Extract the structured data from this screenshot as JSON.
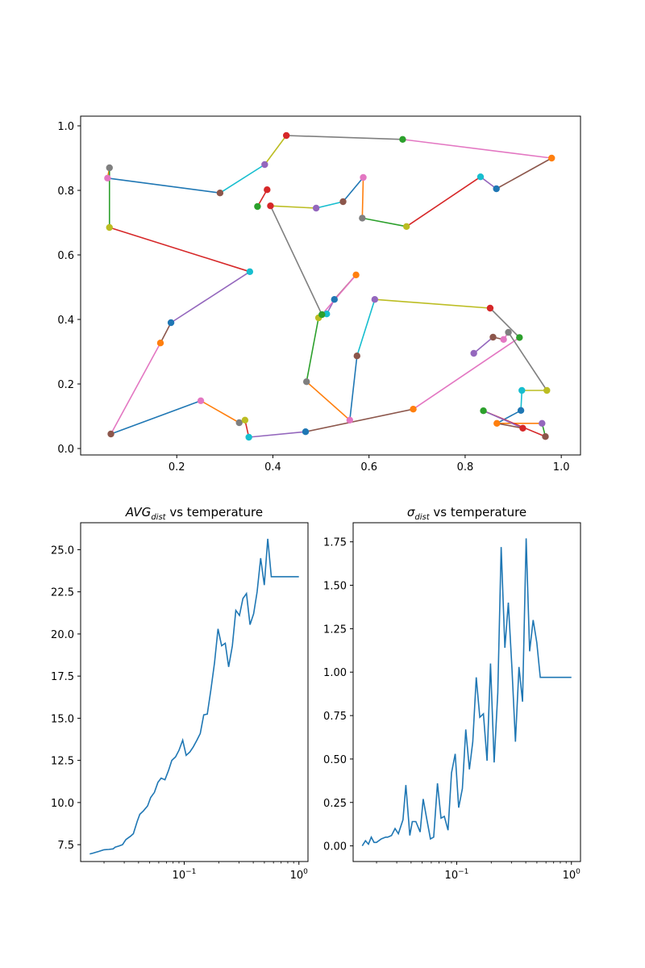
{
  "chart_data": [
    {
      "type": "scatter",
      "title": "",
      "xlabel": "",
      "ylabel": "",
      "xlim": [
        0.0,
        1.04
      ],
      "ylim": [
        -0.02,
        1.03
      ],
      "xticks": [
        "0.2",
        "0.4",
        "0.6",
        "0.8",
        "1.0"
      ],
      "yticks": [
        "0.0",
        "0.2",
        "0.4",
        "0.6",
        "0.8",
        "1.0"
      ],
      "color_cycle": [
        "#1f77b4",
        "#ff7f0e",
        "#2ca02c",
        "#d62728",
        "#9467bd",
        "#8c564b",
        "#e377c2",
        "#7f7f7f",
        "#bcbd22",
        "#17becf"
      ],
      "tour": [
        [
          0.063,
          0.045
        ],
        [
          0.25,
          0.148
        ],
        [
          0.33,
          0.08
        ],
        [
          0.342,
          0.088
        ],
        [
          0.35,
          0.035
        ],
        [
          0.468,
          0.052
        ],
        [
          0.692,
          0.122
        ],
        [
          0.913,
          0.344
        ],
        [
          0.852,
          0.435
        ],
        [
          0.612,
          0.462
        ],
        [
          0.575,
          0.287
        ],
        [
          0.56,
          0.088
        ],
        [
          0.47,
          0.207
        ],
        [
          0.495,
          0.405
        ],
        [
          0.512,
          0.417
        ],
        [
          0.528,
          0.462
        ],
        [
          0.573,
          0.538
        ],
        [
          0.502,
          0.415
        ],
        [
          0.395,
          0.752
        ],
        [
          0.49,
          0.745
        ],
        [
          0.546,
          0.765
        ],
        [
          0.588,
          0.84
        ],
        [
          0.586,
          0.714
        ],
        [
          0.678,
          0.688
        ],
        [
          0.832,
          0.842
        ],
        [
          0.865,
          0.805
        ],
        [
          0.98,
          0.9
        ],
        [
          0.67,
          0.958
        ],
        [
          0.428,
          0.97
        ],
        [
          0.383,
          0.88
        ],
        [
          0.29,
          0.792
        ],
        [
          0.056,
          0.838
        ],
        [
          0.06,
          0.87
        ],
        [
          0.06,
          0.685
        ],
        [
          0.352,
          0.548
        ],
        [
          0.188,
          0.39
        ],
        [
          0.166,
          0.327
        ],
        [
          0.063,
          0.045
        ]
      ],
      "stray_points": [
        [
          0.368,
          0.75
        ],
        [
          0.388,
          0.802
        ],
        [
          0.818,
          0.295
        ],
        [
          0.858,
          0.345
        ],
        [
          0.88,
          0.338
        ],
        [
          0.89,
          0.36
        ],
        [
          0.97,
          0.18
        ],
        [
          0.918,
          0.18
        ],
        [
          0.916,
          0.118
        ],
        [
          0.866,
          0.078
        ],
        [
          0.838,
          0.117
        ],
        [
          0.92,
          0.063
        ],
        [
          0.96,
          0.078
        ],
        [
          0.967,
          0.037
        ]
      ],
      "stray_links": [
        [
          0,
          1
        ],
        [
          2,
          3
        ],
        [
          3,
          4
        ],
        [
          4,
          5
        ],
        [
          5,
          6
        ],
        [
          6,
          7
        ],
        [
          7,
          8
        ],
        [
          8,
          9
        ],
        [
          9,
          12
        ],
        [
          12,
          13
        ],
        [
          13,
          10
        ],
        [
          10,
          11
        ],
        [
          11,
          9
        ]
      ]
    },
    {
      "type": "line",
      "title_base": "AVG",
      "title_sub": "dist",
      "title_rest": " vs temperature",
      "xlabel": "",
      "ylabel": "",
      "xscale": "log",
      "xlim": [
        0.0125,
        1.2
      ],
      "ylim": [
        6.5,
        26.6
      ],
      "yticks": [
        "7.5",
        "10.0",
        "12.5",
        "15.0",
        "17.5",
        "20.0",
        "22.5",
        "25.0"
      ],
      "xtick_base": "10",
      "xtick_exps": [
        "−1",
        "0"
      ],
      "x": [
        0.015,
        0.016,
        0.017,
        0.018,
        0.019,
        0.02,
        0.022,
        0.024,
        0.025,
        0.027,
        0.029,
        0.031,
        0.034,
        0.036,
        0.039,
        0.041,
        0.044,
        0.048,
        0.051,
        0.055,
        0.059,
        0.063,
        0.068,
        0.073,
        0.078,
        0.084,
        0.09,
        0.097,
        0.104,
        0.112,
        0.12,
        0.129,
        0.138,
        0.148,
        0.159,
        0.171,
        0.184,
        0.197,
        0.212,
        0.228,
        0.244,
        0.263,
        0.282,
        0.303,
        0.325,
        0.349,
        0.375,
        0.403,
        0.432,
        0.464,
        0.499,
        0.535,
        0.575,
        0.617,
        0.663,
        0.712,
        0.764,
        0.821,
        0.881,
        0.946,
        1.0
      ],
      "y": [
        6.95,
        7.0,
        7.05,
        7.1,
        7.15,
        7.2,
        7.22,
        7.25,
        7.35,
        7.42,
        7.5,
        7.8,
        8.0,
        8.15,
        8.9,
        9.3,
        9.5,
        9.8,
        10.3,
        10.6,
        11.2,
        11.45,
        11.35,
        11.9,
        12.5,
        12.7,
        13.1,
        13.7,
        12.8,
        13.0,
        13.3,
        13.7,
        14.1,
        15.2,
        15.25,
        16.7,
        18.3,
        20.3,
        19.3,
        19.45,
        18.05,
        19.3,
        21.4,
        21.1,
        22.1,
        22.4,
        20.55,
        21.2,
        22.5,
        24.5,
        22.9,
        25.65,
        23.4,
        23.4,
        23.4,
        23.4,
        23.4,
        23.4,
        23.4,
        23.4,
        23.4
      ]
    },
    {
      "type": "line",
      "title_base": "σ",
      "title_sub": "dist",
      "title_rest": " vs temperature",
      "xlabel": "",
      "ylabel": "",
      "xscale": "log",
      "xlim": [
        0.0125,
        1.2
      ],
      "ylim": [
        -0.09,
        1.86
      ],
      "yticks": [
        "0.00",
        "0.25",
        "0.50",
        "0.75",
        "1.00",
        "1.25",
        "1.50",
        "1.75"
      ],
      "xtick_base": "10",
      "xtick_exps": [
        "−1",
        "0"
      ],
      "x": [
        0.015,
        0.016,
        0.017,
        0.018,
        0.019,
        0.02,
        0.022,
        0.024,
        0.025,
        0.027,
        0.029,
        0.031,
        0.034,
        0.036,
        0.039,
        0.041,
        0.044,
        0.048,
        0.051,
        0.055,
        0.059,
        0.063,
        0.068,
        0.073,
        0.078,
        0.084,
        0.09,
        0.097,
        0.104,
        0.112,
        0.12,
        0.129,
        0.138,
        0.148,
        0.159,
        0.171,
        0.184,
        0.197,
        0.212,
        0.228,
        0.244,
        0.263,
        0.282,
        0.303,
        0.325,
        0.349,
        0.375,
        0.403,
        0.432,
        0.464,
        0.499,
        0.535,
        0.575,
        0.617,
        0.663,
        0.712,
        0.764,
        0.821,
        0.881,
        0.946,
        1.0
      ],
      "y": [
        0.0,
        0.03,
        0.01,
        0.05,
        0.02,
        0.02,
        0.04,
        0.05,
        0.05,
        0.06,
        0.1,
        0.07,
        0.15,
        0.35,
        0.06,
        0.14,
        0.14,
        0.08,
        0.27,
        0.15,
        0.04,
        0.05,
        0.36,
        0.16,
        0.17,
        0.09,
        0.42,
        0.53,
        0.22,
        0.33,
        0.67,
        0.44,
        0.6,
        0.97,
        0.74,
        0.76,
        0.49,
        1.05,
        0.48,
        0.88,
        1.72,
        1.14,
        1.4,
        1.02,
        0.6,
        1.03,
        0.83,
        1.77,
        1.12,
        1.3,
        1.17,
        0.97,
        0.97,
        0.97,
        0.97,
        0.97,
        0.97,
        0.97,
        0.97,
        0.97,
        0.97
      ]
    }
  ]
}
